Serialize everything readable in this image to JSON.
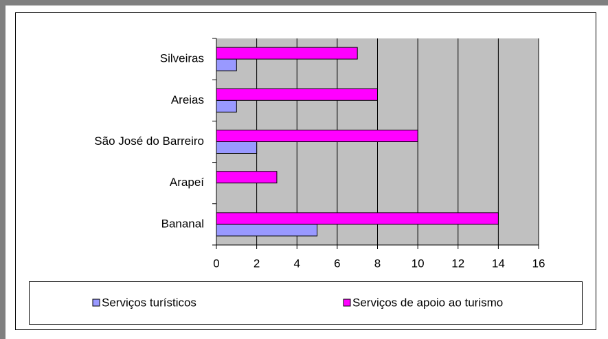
{
  "chart_data": {
    "type": "barh",
    "categories": [
      "Silveiras",
      "Areias",
      "São José do Barreiro",
      "Arapeí",
      "Bananal"
    ],
    "series": [
      {
        "name": "Serviços turísticos",
        "color": "#9999ff",
        "values": [
          1,
          1,
          2,
          0,
          5
        ]
      },
      {
        "name": "Serviços de apoio ao turismo",
        "color": "#ff00ff",
        "values": [
          7,
          8,
          10,
          3,
          14
        ]
      }
    ],
    "xlim": [
      0,
      16
    ],
    "xticks": [
      0,
      2,
      4,
      6,
      8,
      10,
      12,
      14,
      16
    ],
    "grid": true,
    "legend": "bottom"
  }
}
